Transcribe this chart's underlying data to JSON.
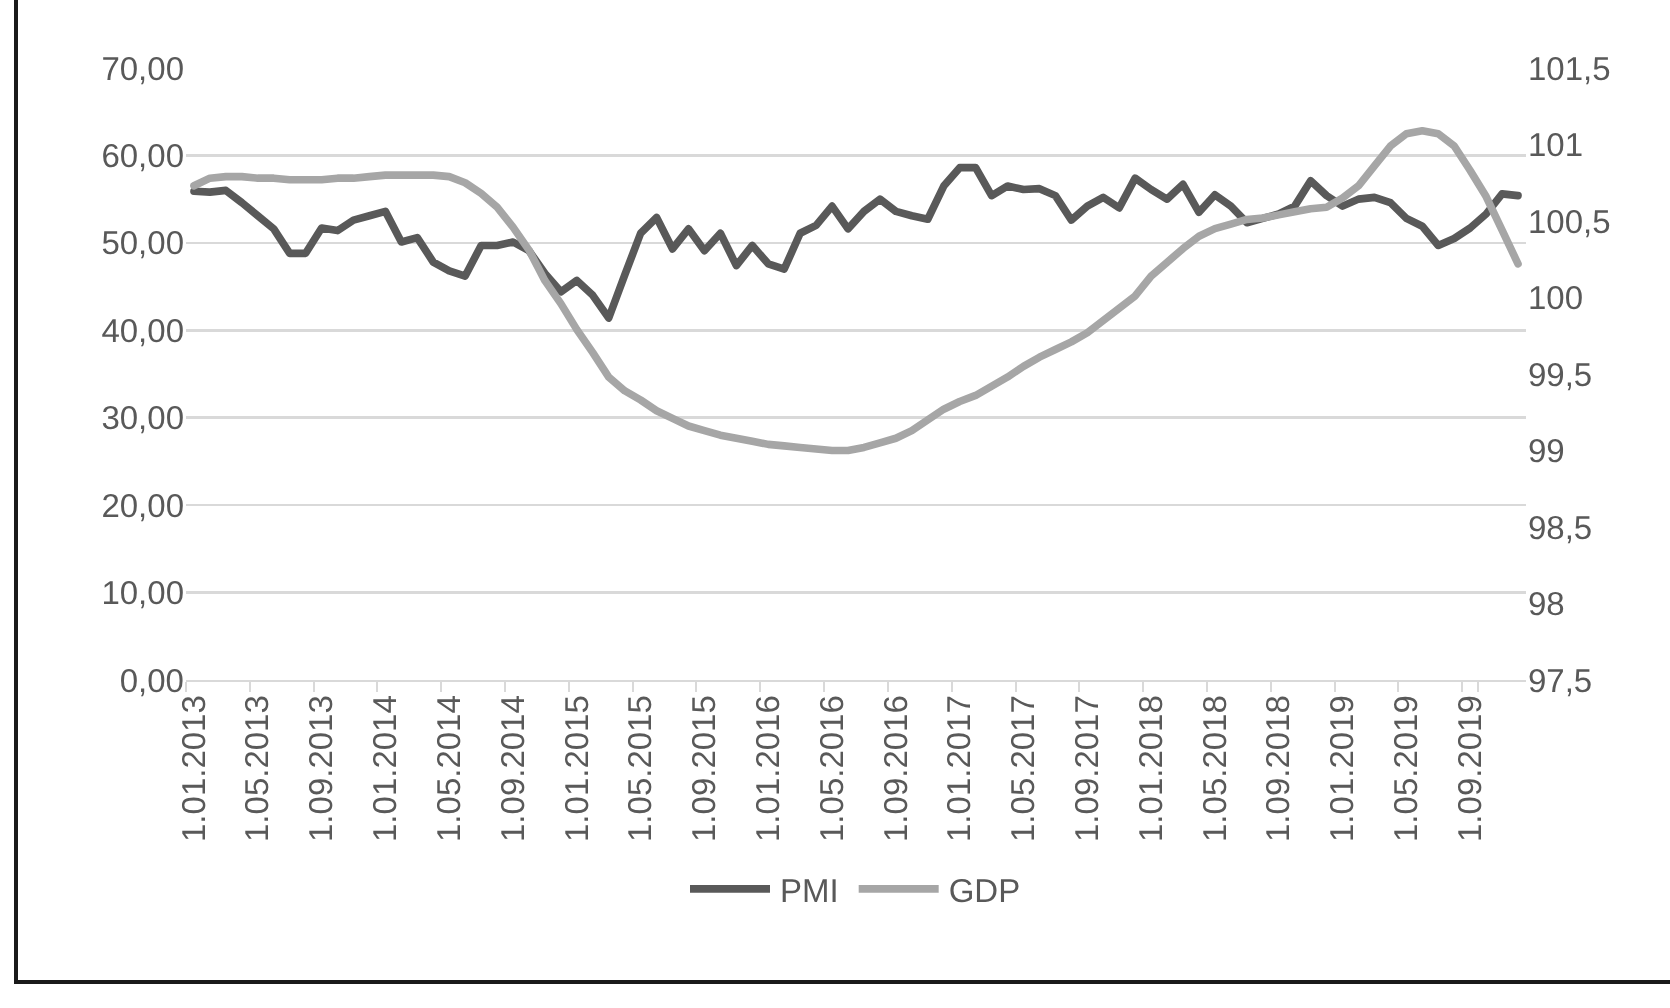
{
  "chart_data": {
    "type": "line",
    "categories": [
      "1.01.2013",
      null,
      null,
      null,
      "1.05.2013",
      null,
      null,
      null,
      "1.09.2013",
      null,
      null,
      null,
      "1.01.2014",
      null,
      null,
      null,
      "1.05.2014",
      null,
      null,
      null,
      "1.09.2014",
      null,
      null,
      null,
      "1.01.2015",
      null,
      null,
      null,
      "1.05.2015",
      null,
      null,
      null,
      "1.09.2015",
      null,
      null,
      null,
      "1.01.2016",
      null,
      null,
      null,
      "1.05.2016",
      null,
      null,
      null,
      "1.09.2016",
      null,
      null,
      null,
      "1.01.2017",
      null,
      null,
      null,
      "1.05.2017",
      null,
      null,
      null,
      "1.09.2017",
      null,
      null,
      null,
      "1.01.2018",
      null,
      null,
      null,
      "1.05.2018",
      null,
      null,
      null,
      "1.09.2018",
      null,
      null,
      null,
      "1.01.2019",
      null,
      null,
      null,
      "1.05.2019",
      null,
      null,
      null,
      "1.09.2019",
      null,
      null,
      null
    ],
    "series": [
      {
        "name": "PMI",
        "color": "#595959",
        "values": [
          55.9,
          55.8,
          56.0,
          54.6,
          53.1,
          51.6,
          48.8,
          48.8,
          51.7,
          51.4,
          52.6,
          53.1,
          53.6,
          50.1,
          50.6,
          47.8,
          46.8,
          46.2,
          49.7,
          49.7,
          50.1,
          49.1,
          46.5,
          44.4,
          45.7,
          44.0,
          41.4,
          46.3,
          51.1,
          52.9,
          49.3,
          51.6,
          49.1,
          51.1,
          47.4,
          49.7,
          47.6,
          47.0,
          51.1,
          52.0,
          54.2,
          51.6,
          53.6,
          55.0,
          53.6,
          53.1,
          52.7,
          56.5,
          58.6,
          58.6,
          55.4,
          56.5,
          56.1,
          56.2,
          55.4,
          52.6,
          54.2,
          55.2,
          54.0,
          57.4,
          56.1,
          55.0,
          56.7,
          53.5,
          55.5,
          54.2,
          52.3,
          52.8,
          53.3,
          54.2,
          57.1,
          55.4,
          54.2,
          55.0,
          55.2,
          54.6,
          52.8,
          51.9,
          49.7,
          50.5,
          51.7,
          53.3,
          55.6,
          55.4
        ]
      },
      {
        "name": "GDP",
        "color": "#a6a6a6",
        "axis": "y2",
        "values": [
          100.73,
          100.78,
          100.79,
          100.79,
          100.78,
          100.78,
          100.77,
          100.77,
          100.77,
          100.78,
          100.78,
          100.79,
          100.8,
          100.8,
          100.8,
          100.8,
          100.79,
          100.75,
          100.68,
          100.59,
          100.46,
          100.31,
          100.11,
          99.96,
          99.79,
          99.64,
          99.48,
          99.39,
          99.33,
          99.26,
          99.21,
          99.16,
          99.13,
          99.1,
          99.08,
          99.06,
          99.04,
          99.03,
          99.02,
          99.01,
          99.0,
          99.0,
          99.02,
          99.05,
          99.08,
          99.13,
          99.2,
          99.27,
          99.32,
          99.36,
          99.42,
          99.48,
          99.55,
          99.61,
          99.66,
          99.71,
          99.77,
          99.85,
          99.93,
          100.01,
          100.14,
          100.23,
          100.32,
          100.4,
          100.45,
          100.48,
          100.51,
          100.52,
          100.54,
          100.56,
          100.58,
          100.59,
          100.65,
          100.73,
          100.86,
          100.99,
          101.07,
          101.09,
          101.07,
          100.99,
          100.83,
          100.66,
          100.44,
          100.22
        ]
      }
    ],
    "ylim": [
      0,
      70
    ],
    "yticks": [
      {
        "value": 0,
        "label": "0,00"
      },
      {
        "value": 10,
        "label": "10,00"
      },
      {
        "value": 20,
        "label": "20,00"
      },
      {
        "value": 30,
        "label": "30,00"
      },
      {
        "value": 40,
        "label": "40,00"
      },
      {
        "value": 50,
        "label": "50,00"
      },
      {
        "value": 60,
        "label": "60,00"
      },
      {
        "value": 70,
        "label": "70,00"
      }
    ],
    "y2lim": [
      97.5,
      101.5
    ],
    "y2ticks": [
      {
        "value": 97.5,
        "label": "97,5"
      },
      98,
      {
        "value": 98.5,
        "label": "98,5"
      },
      99,
      {
        "value": 99.5,
        "label": "99,5"
      },
      100,
      {
        "value": 100.5,
        "label": "100,5"
      },
      101,
      {
        "value": 101.5,
        "label": "101,5"
      }
    ],
    "grid": "y",
    "legend": "bottom",
    "line_style": "solid"
  }
}
